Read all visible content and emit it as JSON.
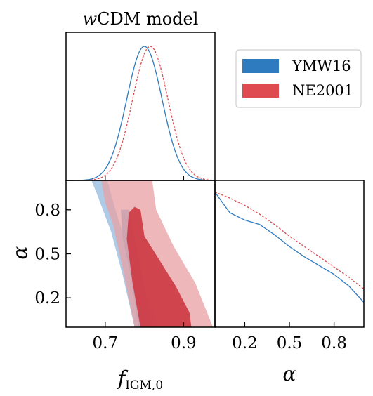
{
  "chart_data": {
    "type": "corner",
    "title": "wCDM model",
    "title_italic_part": "w",
    "title_rest": "CDM model",
    "legend": {
      "placement": "upper-right",
      "entries": [
        {
          "label": "YMW16",
          "color": "#2f7bbf"
        },
        {
          "label": "NE2001",
          "color": "#de4a4f"
        }
      ]
    },
    "colors": {
      "YMW16": "#2f7bbf",
      "NE2001": "#de4a4f",
      "YMW16_fill": "#a9c8e5",
      "NE2001_fill": "#e8a0a3",
      "NE2001_dark": "#cd3a44"
    },
    "parameters": [
      {
        "name": "fIGM0",
        "label": "f_IGM,0",
        "range": [
          0.6,
          0.98
        ],
        "ticks": [
          0.7,
          0.9
        ],
        "tick_labels": [
          "0.7",
          "0.9"
        ]
      },
      {
        "name": "alpha",
        "label": "α",
        "range": [
          0.0,
          1.0
        ],
        "ticks": [
          0.2,
          0.5,
          0.8
        ],
        "tick_labels": [
          "0.2",
          "0.5",
          "0.8"
        ]
      }
    ],
    "marginal_fIGM0": {
      "YMW16": {
        "mean": 0.8,
        "sigma": 0.045
      },
      "NE2001": {
        "mean": 0.815,
        "sigma": 0.045
      }
    },
    "marginal_alpha": {
      "x": [
        0.0,
        0.1,
        0.2,
        0.3,
        0.4,
        0.5,
        0.6,
        0.7,
        0.8,
        0.9,
        1.0
      ],
      "YMW16": [
        0.92,
        0.78,
        0.73,
        0.7,
        0.63,
        0.55,
        0.48,
        0.42,
        0.36,
        0.28,
        0.17
      ],
      "NE2001": [
        0.92,
        0.88,
        0.83,
        0.77,
        0.7,
        0.62,
        0.55,
        0.48,
        0.41,
        0.34,
        0.26
      ]
    },
    "contours_2d": {
      "YMW16": {
        "sigma2": [
          [
            0.665,
            1.0
          ],
          [
            0.705,
            1.0
          ],
          [
            0.735,
            0.72
          ],
          [
            0.785,
            0.35
          ],
          [
            0.84,
            0.0
          ],
          [
            0.775,
            0.0
          ],
          [
            0.745,
            0.35
          ],
          [
            0.715,
            0.65
          ],
          [
            0.68,
            0.9
          ]
        ],
        "sigma1": [
          [
            0.74,
            0.8
          ],
          [
            0.76,
            0.8
          ],
          [
            0.79,
            0.4
          ],
          [
            0.82,
            0.0
          ],
          [
            0.785,
            0.0
          ],
          [
            0.765,
            0.35
          ],
          [
            0.745,
            0.6
          ]
        ]
      },
      "NE2001": {
        "sigma2": [
          [
            0.69,
            1.0
          ],
          [
            0.82,
            1.0
          ],
          [
            0.83,
            0.8
          ],
          [
            0.875,
            0.55
          ],
          [
            0.93,
            0.3
          ],
          [
            0.975,
            0.0
          ],
          [
            0.775,
            0.0
          ],
          [
            0.745,
            0.4
          ],
          [
            0.72,
            0.7
          ],
          [
            0.7,
            0.85
          ]
        ],
        "sigma1": [
          [
            0.76,
            0.78
          ],
          [
            0.775,
            0.82
          ],
          [
            0.79,
            0.8
          ],
          [
            0.8,
            0.62
          ],
          [
            0.84,
            0.45
          ],
          [
            0.88,
            0.28
          ],
          [
            0.915,
            0.1
          ],
          [
            0.92,
            0.0
          ],
          [
            0.79,
            0.0
          ],
          [
            0.77,
            0.3
          ],
          [
            0.755,
            0.6
          ]
        ]
      }
    }
  }
}
